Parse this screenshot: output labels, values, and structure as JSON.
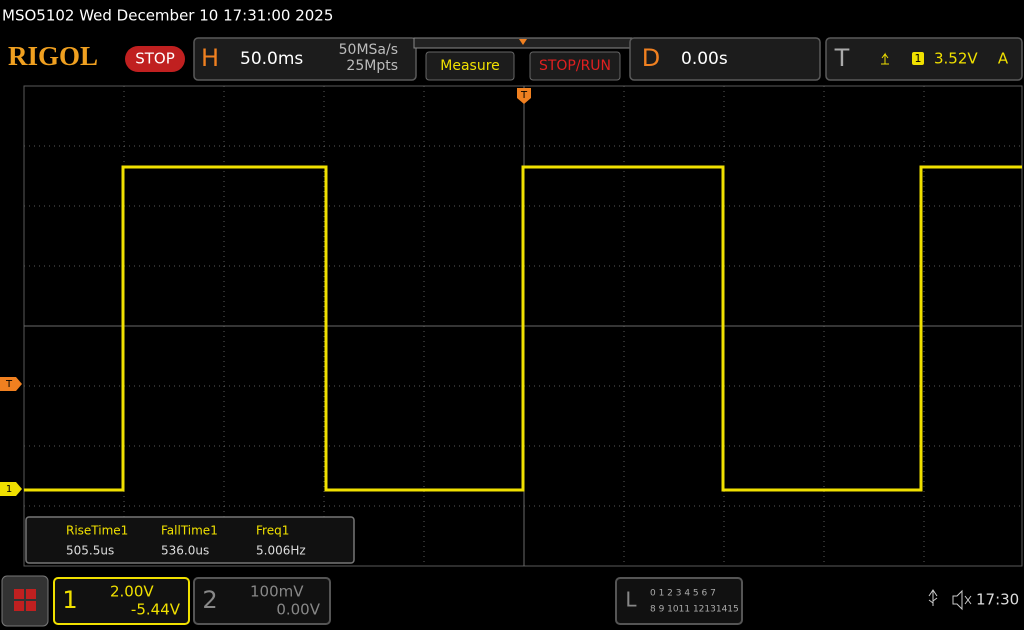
{
  "header": {
    "model_date": "MSO5102  Wed December 10 17:31:00 2025",
    "logo": "RIGOL",
    "status": "STOP"
  },
  "horizontal": {
    "label": "H",
    "timebase": "50.0ms",
    "sample_rate": "50MSa/s",
    "memory_depth": "25Mpts"
  },
  "buttons": {
    "measure": "Measure",
    "stop_run": "STOP/RUN"
  },
  "delay": {
    "label": "D",
    "value": "0.00s"
  },
  "trigger": {
    "label": "T",
    "source": "1",
    "level": "3.52V",
    "mode": "A"
  },
  "markers": {
    "trigger_top": "T",
    "trigger_level": "T",
    "channel1": "1"
  },
  "measurements": {
    "headers": [
      "RiseTime1",
      "FallTime1",
      "Freq1"
    ],
    "values": [
      "505.5us",
      "536.0us",
      "5.006Hz"
    ]
  },
  "channels": [
    {
      "number": "1",
      "scale": "2.00V",
      "offset": "-5.44V"
    },
    {
      "number": "2",
      "scale": "100mV",
      "offset": "0.00V"
    }
  ],
  "logic": {
    "label": "L",
    "row1": "0 1 2 3  4 5 6 7",
    "row2": "8 9 1011 12131415"
  },
  "status_bar": {
    "time": "17:30"
  }
}
